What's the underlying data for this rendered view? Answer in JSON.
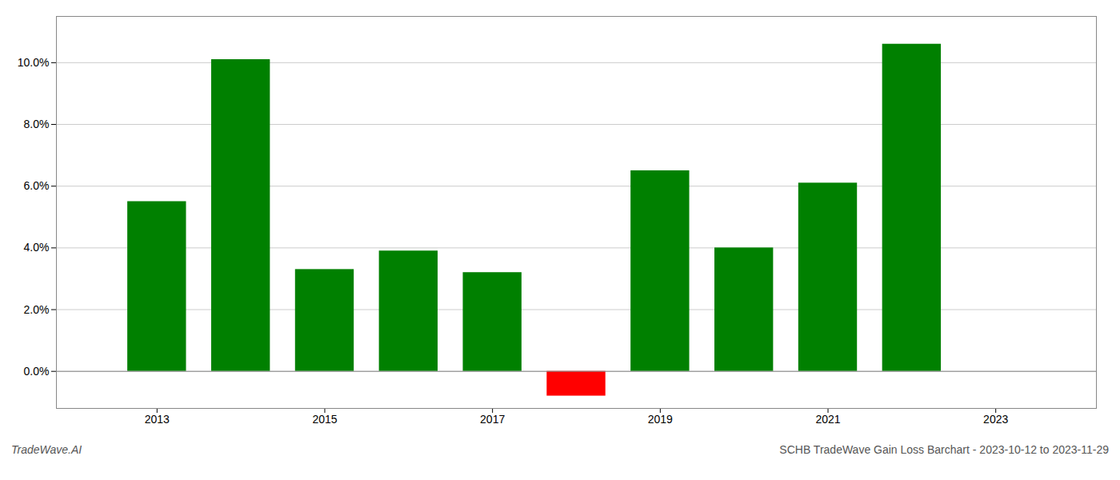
{
  "chart_data": {
    "type": "bar",
    "x": [
      2013,
      2014,
      2015,
      2016,
      2017,
      2018,
      2019,
      2020,
      2021,
      2022
    ],
    "values": [
      0.055,
      0.101,
      0.033,
      0.039,
      0.032,
      -0.008,
      0.065,
      0.04,
      0.061,
      0.106
    ],
    "colors": [
      "#008000",
      "#008000",
      "#008000",
      "#008000",
      "#008000",
      "#ff0000",
      "#008000",
      "#008000",
      "#008000",
      "#008000"
    ],
    "xlim": [
      2011.8,
      2024.2
    ],
    "xticks": [
      2013,
      2015,
      2017,
      2019,
      2021,
      2023
    ],
    "ylim": [
      -0.012,
      0.115
    ],
    "yticks": [
      {
        "value": 0.0,
        "label": "0.0%"
      },
      {
        "value": 0.02,
        "label": "2.0%"
      },
      {
        "value": 0.04,
        "label": "4.0%"
      },
      {
        "value": 0.06,
        "label": "6.0%"
      },
      {
        "value": 0.08,
        "label": "8.0%"
      },
      {
        "value": 0.1,
        "label": "10.0%"
      }
    ],
    "grid": true,
    "annotations": [
      "TradeWave.AI",
      "SCHB TradeWave Gain Loss Barchart - 2023-10-12 to 2023-11-29"
    ]
  }
}
